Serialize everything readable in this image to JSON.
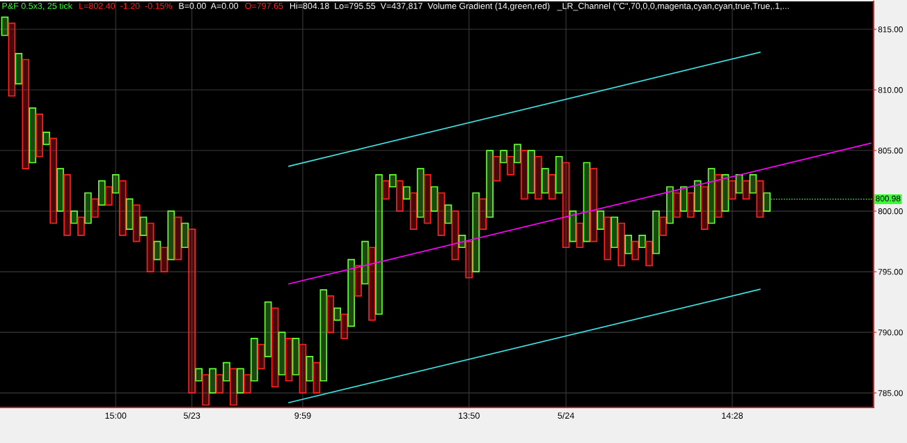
{
  "chart_data": {
    "type": "bar",
    "title": "P&F 0.5x3, 25 tick",
    "annotations": [
      "L=802.40  -1.20  -0.15%",
      "B=0.00  A=0.00",
      "O=797.65",
      "Hi=804.18  Lo=795.55  V=437,817  Volume Gradient (14,green,red)   _LR_Channel (\"C\",70,0,0,magenta,cyan,cyan,true,True,.1,..."
    ],
    "ref_lines": [
      {
        "axis": "y",
        "value": 800.98,
        "label": "800.98",
        "color": "#33ff33"
      }
    ],
    "categories": [
      null,
      null,
      null,
      null,
      null,
      null,
      null,
      null,
      null,
      null,
      null,
      null,
      null,
      null,
      null,
      null,
      "15:00",
      null,
      null,
      null,
      null,
      null,
      null,
      null,
      null,
      null,
      null,
      "5/23",
      null,
      null,
      null,
      null,
      null,
      null,
      null,
      null,
      null,
      null,
      null,
      null,
      null,
      null,
      null,
      "9:59",
      null,
      null,
      null,
      null,
      null,
      null,
      null,
      null,
      null,
      null,
      null,
      null,
      null,
      null,
      null,
      null,
      null,
      null,
      null,
      null,
      null,
      null,
      null,
      "13:50",
      null,
      null,
      null,
      null,
      null,
      null,
      null,
      null,
      null,
      null,
      null,
      null,
      null,
      "5/24",
      null,
      null,
      null,
      null,
      null,
      null,
      null,
      null,
      null,
      null,
      null,
      null,
      null,
      null,
      null,
      null,
      null,
      null,
      null,
      null,
      null,
      null,
      null,
      "14:28",
      null,
      null,
      null,
      null,
      null,
      null,
      null,
      null,
      null,
      null,
      null,
      null,
      null,
      null,
      null,
      null,
      null,
      null,
      null,
      null
    ],
    "series": [
      {
        "values": [
          1.5,
          6,
          2.5,
          9,
          4.5,
          3.5,
          1,
          7,
          3.5,
          5,
          1,
          1.5,
          2.5,
          1.5,
          2,
          1.5,
          1.5,
          4.5,
          2.5,
          3,
          1.5,
          4,
          1.5,
          2,
          4,
          3.5,
          2,
          13.5,
          1,
          2.5,
          2,
          1.5,
          1.5,
          3,
          2,
          1.5,
          3.5,
          2,
          4.5,
          6.5,
          3.5,
          3.5,
          3,
          4,
          2,
          2.5,
          7.5,
          3,
          1,
          2,
          5.5,
          2.5,
          3.5,
          6,
          11.5,
          1.5,
          1,
          2.5,
          1,
          3,
          4,
          4,
          2,
          3.5,
          1.5,
          4,
          1,
          3,
          6.5,
          2.5,
          5.5,
          2,
          1,
          1.5,
          1.5,
          4,
          3.5,
          3.5,
          2,
          2,
          3,
          7,
          2.5,
          2,
          6.5,
          6,
          1.5,
          3.5,
          2.5,
          3.5,
          1.5,
          1.5,
          1,
          2,
          3.5,
          1.5,
          3,
          2,
          2,
          2,
          2.5,
          3.5,
          4.5,
          3.5,
          3,
          1.5,
          1.5,
          1.5,
          1.5,
          3,
          1.5,
          null,
          null,
          null,
          null,
          null,
          null,
          null,
          null,
          null,
          null,
          null,
          null,
          null,
          null,
          null
        ],
        "base": [
          814.5,
          809.5,
          810.5,
          803.5,
          804,
          804.5,
          805.5,
          799,
          800,
          798,
          799,
          798,
          799,
          799.5,
          800.5,
          800.5,
          801.5,
          798,
          798.5,
          797.5,
          798,
          795,
          796,
          795,
          796,
          796,
          797,
          785,
          786,
          784,
          785,
          785,
          786,
          784,
          785,
          785,
          786,
          787,
          788,
          785.5,
          786.5,
          786,
          786.5,
          785,
          786,
          785,
          786,
          790,
          791,
          789.5,
          790.5,
          793,
          794,
          791,
          791.5,
          801,
          802,
          800,
          801,
          798.5,
          799.5,
          799,
          800,
          798,
          799,
          796,
          797,
          794.5,
          795,
          798.5,
          799.5,
          802.5,
          804,
          803,
          804,
          801,
          801.5,
          801,
          801.5,
          801,
          801.5,
          797,
          797.5,
          797,
          797.5,
          797.5,
          798.5,
          796,
          797,
          795.5,
          796.5,
          796,
          797,
          795.5,
          796.5,
          798,
          799,
          799.5,
          800,
          799.5,
          800,
          798.5,
          799,
          799.5,
          800,
          801,
          801.5,
          801,
          801.5,
          799.5,
          800,
          null,
          null,
          null,
          null,
          null,
          null,
          null,
          null,
          null,
          null,
          null,
          null,
          null,
          null,
          null
        ],
        "colors": [
          "#66ff33",
          "#ff2020",
          "#66ff33",
          "#ff2020",
          "#66ff33",
          "#ff2020",
          "#66ff33",
          "#ff2020",
          "#66ff33",
          "#ff2020",
          "#66ff33",
          "#ff2020",
          "#66ff33",
          "#ff2020",
          "#66ff33",
          "#ff2020",
          "#66ff33",
          "#ff2020",
          "#66ff33",
          "#ff2020",
          "#66ff33",
          "#ff2020",
          "#66ff33",
          "#ff2020",
          "#66ff33",
          "#ff2020",
          "#66ff33",
          "#ff2020",
          "#66ff33",
          "#ff2020",
          "#66ff33",
          "#ff2020",
          "#66ff33",
          "#ff2020",
          "#66ff33",
          "#ff2020",
          "#66ff33",
          "#ff2020",
          "#66ff33",
          "#ff2020",
          "#66ff33",
          "#ff2020",
          "#66ff33",
          "#ff2020",
          "#66ff33",
          "#ff2020",
          "#66ff33",
          "#ff2020",
          "#66ff33",
          "#ff2020",
          "#66ff33",
          "#ff2020",
          "#66ff33",
          "#ff2020",
          "#66ff33",
          "#ff2020",
          "#66ff33",
          "#ff2020",
          "#66ff33",
          "#ff2020",
          "#66ff33",
          "#ff2020",
          "#66ff33",
          "#ff2020",
          "#66ff33",
          "#ff2020",
          "#66ff33",
          "#ff2020",
          "#66ff33",
          "#ff2020",
          "#66ff33",
          "#ff2020",
          "#66ff33",
          "#ff2020",
          "#66ff33",
          "#ff2020",
          "#66ff33",
          "#ff2020",
          "#66ff33",
          "#ff2020",
          "#66ff33",
          "#ff2020",
          "#66ff33",
          "#ff2020",
          "#66ff33",
          "#ff2020",
          "#66ff33",
          "#ff2020",
          "#66ff33",
          "#ff2020",
          "#66ff33",
          "#ff2020",
          "#66ff33",
          "#ff2020",
          "#66ff33",
          "#ff2020",
          "#66ff33",
          "#ff2020",
          "#66ff33",
          "#ff2020",
          "#66ff33",
          "#ff2020",
          "#66ff33",
          "#ff2020",
          "#66ff33",
          "#ff2020",
          "#66ff33",
          "#ff2020",
          "#66ff33",
          "#ff2020",
          "#66ff33",
          "#66ff33",
          "#66ff33",
          "#66ff33",
          "#66ff33",
          "#66ff33",
          "#66ff33",
          "#66ff33",
          "#66ff33",
          "#66ff33",
          "#66ff33",
          "#66ff33",
          "#66ff33",
          "#66ff33",
          "#66ff33",
          "#66ff33"
        ]
      },
      {
        "type": "line",
        "values": [
          null,
          null,
          null,
          null,
          null,
          null,
          null,
          null,
          null,
          null,
          null,
          null,
          null,
          null,
          null,
          null,
          null,
          null,
          null,
          null,
          null,
          null,
          null,
          null,
          null,
          null,
          null,
          null,
          null,
          null,
          null,
          null,
          null,
          null,
          null,
          null,
          null,
          null,
          null,
          null,
          null,
          803.7,
          null,
          null,
          null,
          null,
          null,
          null,
          null,
          null,
          null,
          null,
          null,
          null,
          null,
          null,
          null,
          null,
          null,
          null,
          null,
          null,
          null,
          null,
          null,
          null,
          null,
          null,
          null,
          null,
          null,
          null,
          null,
          null,
          null,
          null,
          null,
          null,
          null,
          null,
          null,
          null,
          null,
          null,
          null,
          null,
          null,
          null,
          null,
          null,
          null,
          null,
          null,
          null,
          null,
          null,
          null,
          null,
          null,
          null,
          null,
          null,
          null,
          null,
          null,
          null,
          null,
          null,
          null,
          813.1,
          null,
          null,
          null,
          null,
          null,
          null,
          null,
          null,
          null,
          null,
          null,
          null,
          null,
          null,
          null,
          null
        ],
        "color": "#40e0e0"
      },
      {
        "type": "line",
        "values": [
          null,
          null,
          null,
          null,
          null,
          null,
          null,
          null,
          null,
          null,
          null,
          null,
          null,
          null,
          null,
          null,
          null,
          null,
          null,
          null,
          null,
          null,
          null,
          null,
          null,
          null,
          null,
          null,
          null,
          null,
          null,
          null,
          null,
          null,
          null,
          null,
          null,
          null,
          null,
          null,
          null,
          794.0,
          null,
          null,
          null,
          null,
          null,
          null,
          null,
          null,
          null,
          null,
          null,
          null,
          null,
          null,
          null,
          null,
          null,
          null,
          null,
          null,
          null,
          null,
          null,
          null,
          null,
          null,
          null,
          null,
          null,
          null,
          null,
          null,
          null,
          null,
          null,
          null,
          null,
          null,
          null,
          null,
          null,
          null,
          null,
          null,
          null,
          null,
          null,
          null,
          null,
          null,
          null,
          null,
          null,
          null,
          null,
          null,
          null,
          null,
          null,
          null,
          null,
          null,
          null,
          null,
          null,
          null,
          null,
          null,
          null,
          null,
          null,
          null,
          null,
          null,
          null,
          null,
          null,
          null,
          null,
          null,
          null,
          null,
          null,
          805.6
        ],
        "color": "#ff00ff"
      },
      {
        "type": "line",
        "values": [
          null,
          null,
          null,
          null,
          null,
          null,
          null,
          null,
          null,
          null,
          null,
          null,
          null,
          null,
          null,
          null,
          null,
          null,
          null,
          null,
          null,
          null,
          null,
          null,
          null,
          null,
          null,
          null,
          null,
          null,
          null,
          null,
          null,
          null,
          null,
          null,
          null,
          null,
          null,
          null,
          null,
          784.2,
          null,
          null,
          null,
          null,
          null,
          null,
          null,
          null,
          null,
          null,
          null,
          null,
          null,
          null,
          null,
          null,
          null,
          null,
          null,
          null,
          null,
          null,
          null,
          null,
          null,
          null,
          null,
          null,
          null,
          null,
          null,
          null,
          null,
          null,
          null,
          null,
          null,
          null,
          null,
          null,
          null,
          null,
          null,
          null,
          null,
          null,
          null,
          null,
          null,
          null,
          null,
          null,
          null,
          null,
          null,
          null,
          null,
          null,
          null,
          null,
          null,
          null,
          null,
          null,
          null,
          null,
          null,
          793.55,
          null,
          null,
          null,
          null,
          null,
          null,
          null,
          null,
          null,
          null,
          null,
          null,
          null,
          null,
          null,
          null
        ],
        "color": "#40e0e0"
      }
    ],
    "ylim": [
      783.8,
      817.3
    ],
    "yticks": [
      {
        "value": 785,
        "label": "785.00"
      },
      {
        "value": 790,
        "label": "790.00"
      },
      {
        "value": 795,
        "label": "795.00"
      },
      {
        "value": 800,
        "label": "800.00"
      },
      {
        "value": 805,
        "label": "805.00"
      },
      {
        "value": 810,
        "label": "810.00"
      },
      {
        "value": 815,
        "label": "815.00"
      }
    ],
    "grid": true
  }
}
